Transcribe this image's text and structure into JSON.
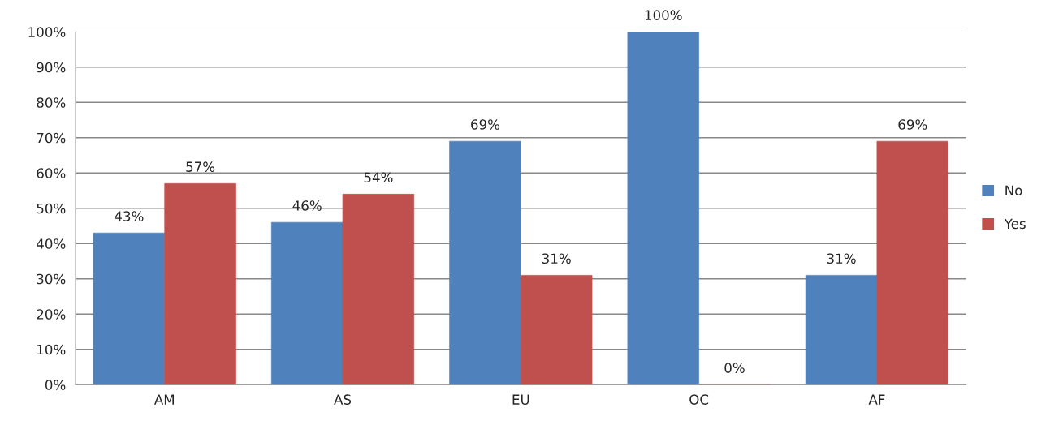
{
  "chart_data": {
    "type": "bar",
    "categories": [
      "AM",
      "AS",
      "EU",
      "OC",
      "AF"
    ],
    "series": [
      {
        "name": "No",
        "color": "#4f81bd",
        "values": [
          43,
          46,
          69,
          100,
          31
        ],
        "value_labels": [
          "43%",
          "46%",
          "69%",
          "100%",
          "31%"
        ]
      },
      {
        "name": "Yes",
        "color": "#c0504d",
        "values": [
          57,
          54,
          31,
          0,
          69
        ],
        "value_labels": [
          "57%",
          "54%",
          "31%",
          "0%",
          "69%"
        ]
      }
    ],
    "ylim": [
      0,
      100
    ],
    "yticks": [
      {
        "value": 0,
        "label": "0%"
      },
      {
        "value": 10,
        "label": "10%"
      },
      {
        "value": 20,
        "label": "20%"
      },
      {
        "value": 30,
        "label": "30%"
      },
      {
        "value": 40,
        "label": "40%"
      },
      {
        "value": 50,
        "label": "50%"
      },
      {
        "value": 60,
        "label": "60%"
      },
      {
        "value": 70,
        "label": "70%"
      },
      {
        "value": 80,
        "label": "80%"
      },
      {
        "value": 90,
        "label": "90%"
      },
      {
        "value": 100,
        "label": "100%"
      }
    ],
    "grid": "y",
    "legend": "right"
  }
}
